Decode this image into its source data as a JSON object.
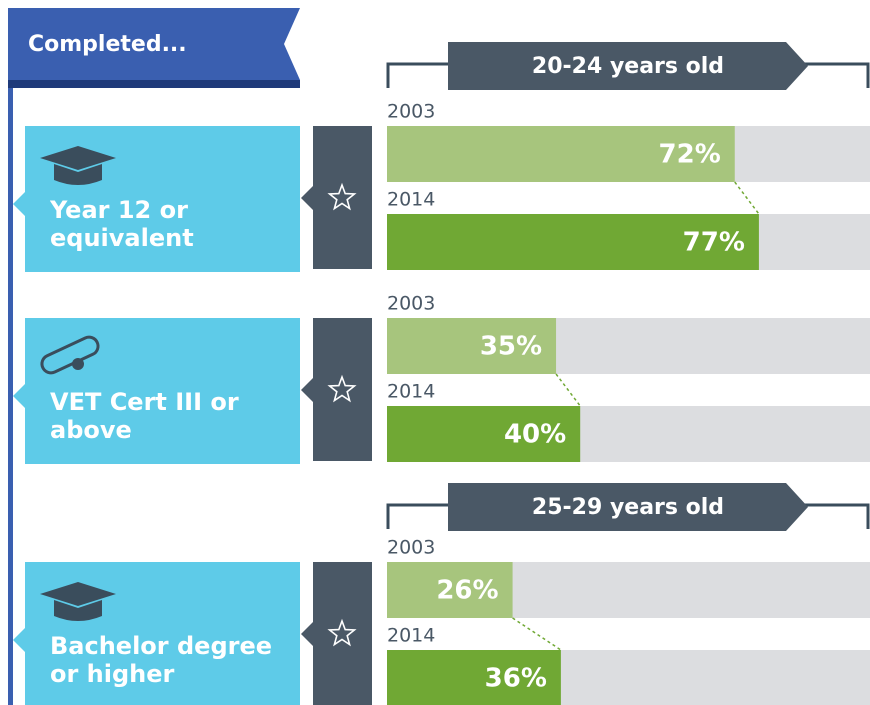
{
  "title": "Completed...",
  "chart_data": [
    {
      "type": "bar",
      "subtitle": "20-24 years old",
      "categories": [
        "Year 12 or\nequivalent",
        "VET Cert III or\nabove"
      ],
      "xlim": [
        0,
        100
      ],
      "series": [
        {
          "name": "2003",
          "color": "#a7c57d",
          "values": [
            72,
            35
          ],
          "value_labels": [
            "72%",
            "35%"
          ]
        },
        {
          "name": "2014",
          "color": "#70a834",
          "values": [
            77,
            40
          ],
          "value_labels": [
            "77%",
            "40%"
          ]
        }
      ]
    },
    {
      "type": "bar",
      "subtitle": "25-29 years old",
      "categories": [
        "Bachelor degree\nor higher"
      ],
      "xlim": [
        0,
        100
      ],
      "series": [
        {
          "name": "2003",
          "color": "#a7c57d",
          "values": [
            26
          ],
          "value_labels": [
            "26%"
          ]
        },
        {
          "name": "2014",
          "color": "#70a834",
          "values": [
            36
          ],
          "value_labels": [
            "36%"
          ]
        }
      ]
    }
  ]
}
